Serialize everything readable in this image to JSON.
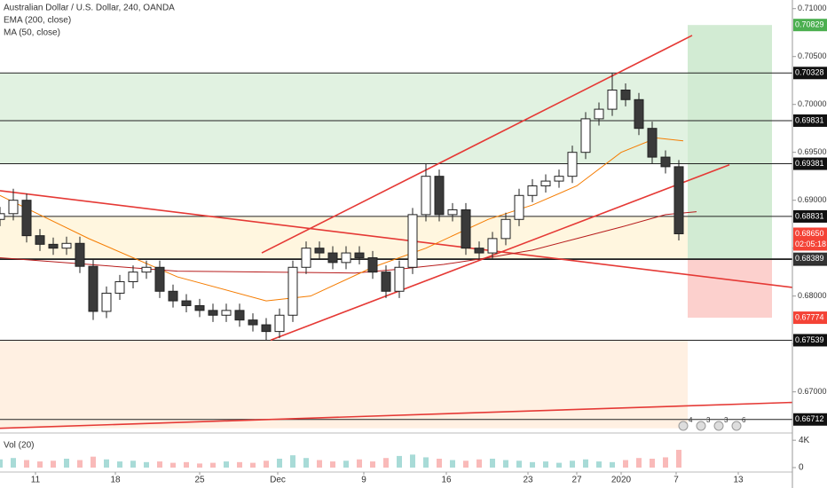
{
  "chart_data": {
    "type": "candlestick",
    "title": "Australian Dollar / U.S. Dollar, 240, OANDA",
    "x": [
      0,
      3,
      6,
      9,
      12,
      15,
      18,
      21,
      24,
      27,
      30,
      33,
      36,
      39,
      42,
      45,
      48,
      51,
      54,
      57,
      60,
      63,
      66,
      69,
      72,
      75,
      78,
      81,
      84,
      87,
      90,
      93,
      96,
      99,
      102,
      105,
      108,
      111,
      114,
      117,
      120,
      123,
      126,
      129,
      132,
      135,
      138,
      141,
      144,
      147,
      150,
      153
    ],
    "open": [
      0.688,
      0.6886,
      0.69,
      0.6863,
      0.6854,
      0.685,
      0.6855,
      0.6831,
      0.6784,
      0.6803,
      0.6815,
      0.6825,
      0.683,
      0.6805,
      0.6795,
      0.679,
      0.6785,
      0.678,
      0.6785,
      0.6775,
      0.677,
      0.6763,
      0.678,
      0.683,
      0.685,
      0.6845,
      0.6835,
      0.6845,
      0.684,
      0.6825,
      0.6805,
      0.683,
      0.6885,
      0.6925,
      0.6885,
      0.689,
      0.685,
      0.6845,
      0.686,
      0.688,
      0.6905,
      0.6915,
      0.692,
      0.6925,
      0.695,
      0.6985,
      0.6995,
      0.7015,
      0.7005,
      0.6975,
      0.6945,
      0.6935
    ],
    "high": [
      0.6893,
      0.6912,
      0.6907,
      0.687,
      0.6861,
      0.6862,
      0.6862,
      0.6838,
      0.681,
      0.6822,
      0.6832,
      0.6837,
      0.6837,
      0.6812,
      0.6802,
      0.6797,
      0.6792,
      0.6792,
      0.6792,
      0.6782,
      0.6777,
      0.6787,
      0.6837,
      0.6857,
      0.6857,
      0.6852,
      0.6852,
      0.6852,
      0.6847,
      0.6832,
      0.6837,
      0.6892,
      0.6938,
      0.6932,
      0.6897,
      0.6897,
      0.6857,
      0.6867,
      0.6887,
      0.6912,
      0.6922,
      0.6927,
      0.6932,
      0.6957,
      0.6992,
      0.7002,
      0.7033,
      0.7022,
      0.7012,
      0.6982,
      0.6952,
      0.6942
    ],
    "low": [
      0.6873,
      0.6879,
      0.6856,
      0.6847,
      0.6843,
      0.6843,
      0.6824,
      0.6775,
      0.6777,
      0.6796,
      0.6808,
      0.6818,
      0.6798,
      0.6788,
      0.6783,
      0.6778,
      0.6773,
      0.6773,
      0.6768,
      0.6763,
      0.6754,
      0.6756,
      0.6773,
      0.6823,
      0.6838,
      0.6828,
      0.6828,
      0.6833,
      0.6818,
      0.6798,
      0.6798,
      0.6823,
      0.6878,
      0.6878,
      0.6878,
      0.6843,
      0.6838,
      0.6838,
      0.6853,
      0.6873,
      0.6898,
      0.6908,
      0.6913,
      0.6918,
      0.6943,
      0.6978,
      0.6988,
      0.6998,
      0.6968,
      0.6938,
      0.6928,
      0.6858
    ],
    "close": [
      0.6886,
      0.69,
      0.6863,
      0.6854,
      0.685,
      0.6855,
      0.6831,
      0.6784,
      0.6803,
      0.6815,
      0.6825,
      0.683,
      0.6805,
      0.6795,
      0.679,
      0.6785,
      0.678,
      0.6785,
      0.6775,
      0.677,
      0.6763,
      0.678,
      0.683,
      0.685,
      0.6845,
      0.6835,
      0.6845,
      0.684,
      0.6825,
      0.6805,
      0.683,
      0.6885,
      0.6925,
      0.6885,
      0.689,
      0.685,
      0.6845,
      0.686,
      0.688,
      0.6905,
      0.6915,
      0.692,
      0.6925,
      0.695,
      0.6985,
      0.6995,
      0.7015,
      0.7005,
      0.6975,
      0.6945,
      0.6935,
      0.6865
    ],
    "up_color": "#ffffff",
    "down_color": "#3a3a3a",
    "xlim": [
      0,
      178.6
    ],
    "xticks": [
      {
        "value": 8,
        "label": "11"
      },
      {
        "value": 26,
        "label": "18"
      },
      {
        "value": 45,
        "label": "25"
      },
      {
        "value": 62.6,
        "label": "Dec"
      },
      {
        "value": 82,
        "label": "9"
      },
      {
        "value": 100.6,
        "label": "16"
      },
      {
        "value": 119,
        "label": "23"
      },
      {
        "value": 130,
        "label": "27"
      },
      {
        "value": 140,
        "label": "2020"
      },
      {
        "value": 152.4,
        "label": "7"
      },
      {
        "value": 166.4,
        "label": "13"
      }
    ],
    "ylim": [
      0.6658,
      0.7109
    ],
    "yticks": [
      {
        "value": 0.67,
        "label": "0.67000"
      },
      {
        "value": 0.675,
        "label": "0.67500"
      },
      {
        "value": 0.68,
        "label": "0.68000"
      },
      {
        "value": 0.685,
        "label": "0.68500"
      },
      {
        "value": 0.69,
        "label": "0.69000"
      },
      {
        "value": 0.695,
        "label": "0.69500"
      },
      {
        "value": 0.7,
        "label": "0.70000"
      },
      {
        "value": 0.705,
        "label": "0.70500"
      },
      {
        "value": 0.71,
        "label": "0.71000"
      }
    ],
    "series": [
      {
        "name": "EMA (200, close)",
        "color": "#b71c1c",
        "x": [
          0,
          20,
          40,
          60,
          80,
          90,
          100,
          110,
          120,
          130,
          140,
          150,
          157
        ],
        "values": [
          0.684,
          0.6833,
          0.6826,
          0.6825,
          0.6824,
          0.6828,
          0.6833,
          0.684,
          0.6848,
          0.686,
          0.6872,
          0.6885,
          0.6888
        ]
      },
      {
        "name": "MA (50, close)",
        "color": "#f57c00",
        "x": [
          0,
          20,
          40,
          60,
          70,
          84,
          96,
          110,
          120,
          130,
          140,
          148,
          154
        ],
        "values": [
          0.6905,
          0.686,
          0.682,
          0.6795,
          0.68,
          0.683,
          0.685,
          0.688,
          0.6895,
          0.6915,
          0.695,
          0.6965,
          0.6962
        ]
      }
    ],
    "trendline_color": "#e53935",
    "trendlines": [
      {
        "x": [
          59,
          156
        ],
        "values": [
          0.6845,
          0.7072
        ]
      },
      {
        "x": [
          61,
          164.4
        ],
        "values": [
          0.6754,
          0.6937
        ]
      },
      {
        "x": [
          0,
          178.6
        ],
        "values": [
          0.691,
          0.6809
        ]
      },
      {
        "x": [
          0,
          178.6
        ],
        "values": [
          0.6662,
          0.6689
        ]
      }
    ],
    "levels": [
      0.70328,
      0.69831,
      0.69381,
      0.68831,
      0.68381,
      0.67539,
      0.66712
    ],
    "zones": [
      {
        "x": [
          0,
          155
        ],
        "from": 0.69381,
        "to": 0.70328,
        "color": "rgba(76,175,80,0.17)"
      },
      {
        "x": [
          0,
          155
        ],
        "from": 0.68381,
        "to": 0.68831,
        "color": "rgba(255,224,150,0.3)"
      },
      {
        "x": [
          0,
          155
        ],
        "from": 0.6662,
        "to": 0.67539,
        "color": "rgba(255,196,140,0.25)"
      }
    ],
    "position": {
      "x": [
        155,
        174
      ],
      "target": 0.70829,
      "entry": 0.68389,
      "stop": 0.67774,
      "profit_color": "rgba(76,175,80,0.25)",
      "loss_color": "rgba(244,67,54,0.25)"
    },
    "last": {
      "value": 0.6865,
      "label": "0.68650",
      "countdown": "02:05:18"
    },
    "events": [
      "4",
      "3",
      "3",
      "6"
    ],
    "volume": {
      "title": "Vol (20)",
      "ylim": [
        0,
        4800
      ],
      "yticks": [
        {
          "value": 4000,
          "label": "4K"
        },
        0
      ],
      "values": [
        1200,
        1400,
        1100,
        900,
        1000,
        1300,
        1100,
        1600,
        1200,
        900,
        1000,
        800,
        900,
        700,
        800,
        600,
        700,
        900,
        800,
        700,
        1000,
        1300,
        1800,
        1400,
        1100,
        900,
        1000,
        1200,
        900,
        1400,
        1700,
        1900,
        1500,
        1300,
        1100,
        1000,
        1200,
        1300,
        1100,
        1000,
        800,
        900,
        700,
        1000,
        1200,
        900,
        800,
        1100,
        1400,
        1300,
        1500,
        2600
      ]
    }
  }
}
